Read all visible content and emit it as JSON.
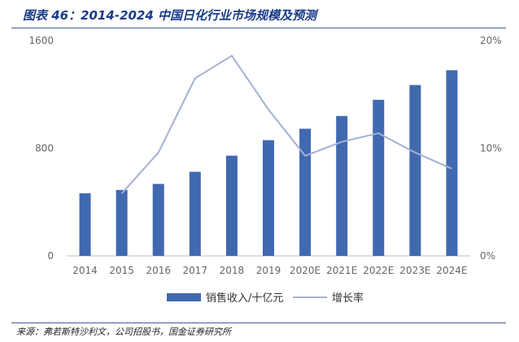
{
  "header": {
    "title": "图表 46：2014-2024 中国日化行业市场规模及预测"
  },
  "footer": {
    "source": "来源：弗若斯特沙利文，公司招股书，国金证券研究所"
  },
  "chart_data": {
    "type": "bar",
    "categories": [
      "2014",
      "2015",
      "2016",
      "2017",
      "2018",
      "2019",
      "2020E",
      "2021E",
      "2022E",
      "2023E",
      "2024E"
    ],
    "series": [
      {
        "name": "销售收入/十亿元",
        "type": "bar",
        "axis": "left",
        "color": "#4169b0",
        "values": [
          465,
          490,
          535,
          625,
          745,
          860,
          945,
          1040,
          1160,
          1270,
          1380
        ]
      },
      {
        "name": "增长率",
        "type": "line",
        "axis": "right",
        "color": "#a4b0d4",
        "values": [
          null,
          5.8,
          9.6,
          16.5,
          18.6,
          13.6,
          9.3,
          10.6,
          11.4,
          9.6,
          8.1
        ]
      }
    ],
    "y_left": {
      "ticks": [
        "0",
        "800",
        "1600"
      ],
      "ylim": [
        0,
        1600
      ]
    },
    "y_right": {
      "ticks": [
        "0%",
        "10%",
        "20%"
      ],
      "ylim": [
        0,
        20
      ]
    },
    "legend": "bottom",
    "grid": false
  }
}
